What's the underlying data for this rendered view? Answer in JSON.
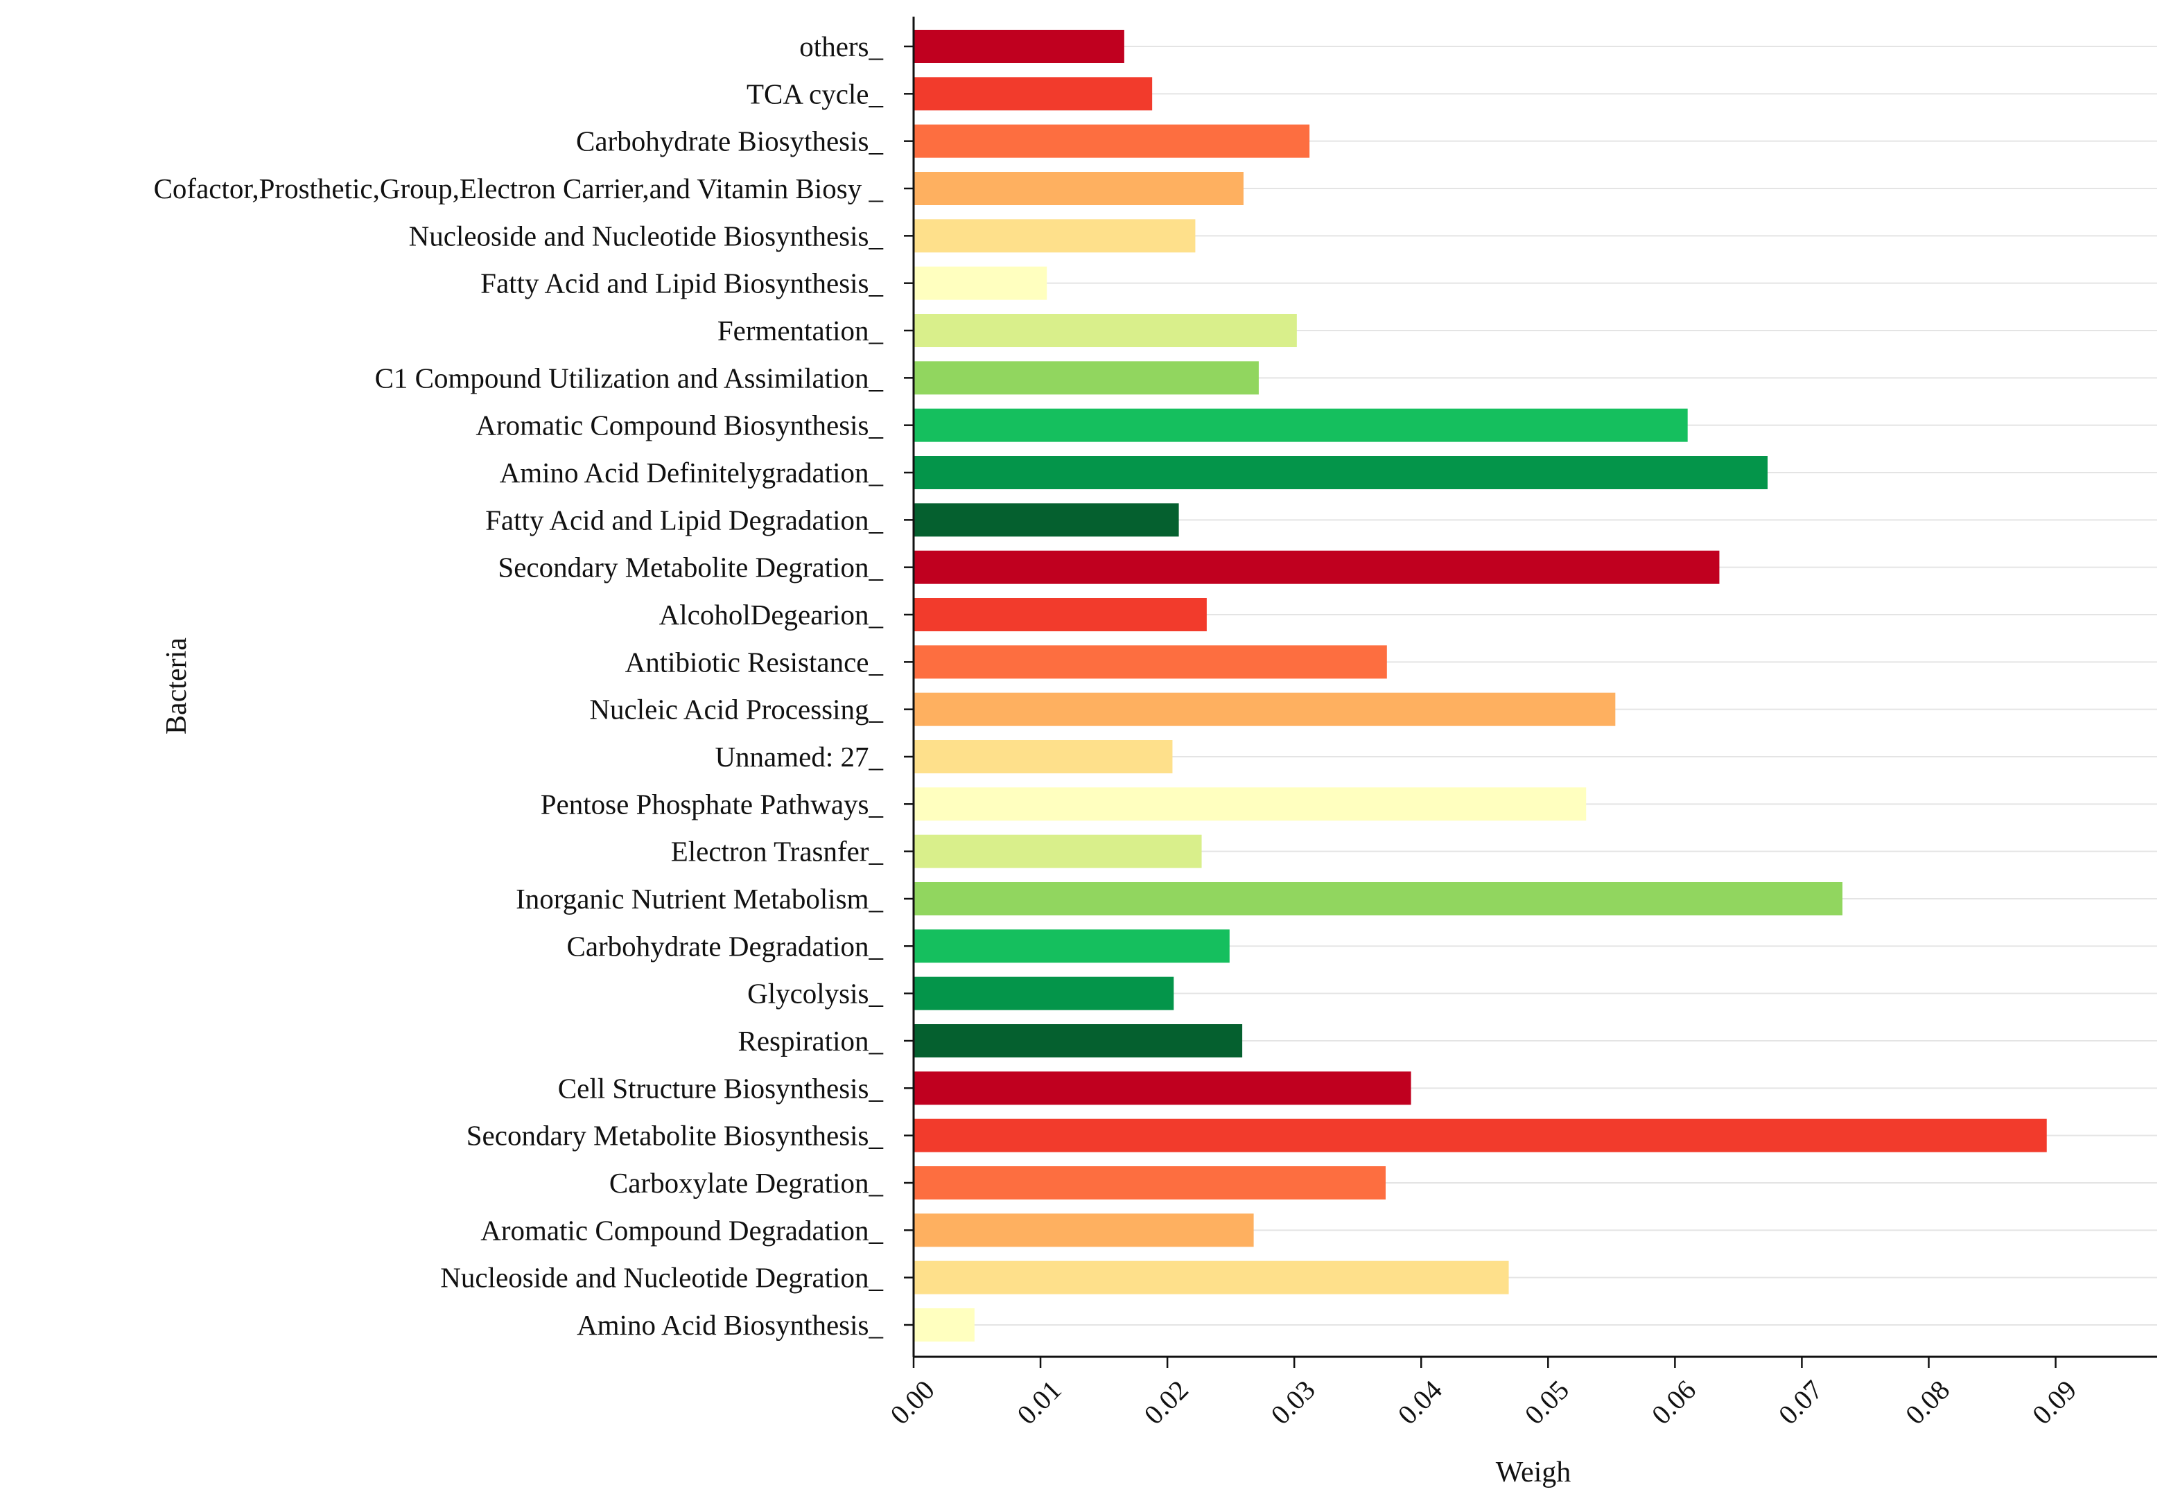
{
  "chart_data": {
    "type": "bar",
    "orientation": "horizontal",
    "title": "",
    "xlabel": "Weigh",
    "ylabel": "Bacteria",
    "xlim": [
      0,
      0.098
    ],
    "xticks": [
      0.0,
      0.01,
      0.02,
      0.03,
      0.04,
      0.05,
      0.06,
      0.07,
      0.08,
      0.09
    ],
    "xtick_labels": [
      "0.00",
      "0.01",
      "0.02",
      "0.03",
      "0.04",
      "0.05",
      "0.06",
      "0.07",
      "0.08",
      "0.09"
    ],
    "grid": "horizontal",
    "categories": [
      "others_",
      "TCA cycle_",
      "Carbohydrate Biosythesis_",
      "Cofactor,Prosthetic,Group,Electron Carrier,and Vitamin Biosy _",
      "Nucleoside and Nucleotide Biosynthesis_",
      "Fatty Acid and Lipid Biosynthesis_",
      "Fermentation_",
      "C1 Compound Utilization and Assimilation_",
      "Aromatic Compound Biosynthesis_",
      "Amino Acid Definitelygradation_",
      "Fatty Acid and Lipid Degradation_",
      "Secondary Metabolite Degration_",
      "AlcoholDegearion_",
      "Antibiotic Resistance_",
      "Nucleic Acid Processing_",
      "Unnamed: 27_",
      "Pentose Phosphate Pathways_",
      "Electron Trasnfer_",
      "Inorganic Nutrient Metabolism_",
      "Carbohydrate Degradation_",
      "Glycolysis_",
      "Respiration_",
      "Cell Structure Biosynthesis_",
      "Secondary Metabolite Biosynthesis_",
      "Carboxylate Degration_",
      "Aromatic Compound Degradation_",
      "Nucleoside and Nucleotide Degration_",
      "Amino Acid Biosynthesis_"
    ],
    "values": [
      0.0166,
      0.0188,
      0.0312,
      0.026,
      0.0222,
      0.0105,
      0.0302,
      0.0272,
      0.061,
      0.0673,
      0.0209,
      0.0635,
      0.0231,
      0.0373,
      0.0553,
      0.0204,
      0.053,
      0.0227,
      0.0732,
      0.0249,
      0.0205,
      0.0259,
      0.0392,
      0.0893,
      0.0372,
      0.0268,
      0.0469,
      0.0048
    ],
    "colors": [
      "#c0001f",
      "#f23b2c",
      "#fd6e40",
      "#feb060",
      "#fee08b",
      "#ffffbf",
      "#d9ef8b",
      "#91d65f",
      "#15bf5e",
      "#04954a",
      "#05602f",
      "#c0001f",
      "#f23b2c",
      "#fd6e40",
      "#feb060",
      "#fee08b",
      "#ffffbf",
      "#d9ef8b",
      "#91d65f",
      "#15bf5e",
      "#04954a",
      "#05602f",
      "#c0001f",
      "#f23b2c",
      "#fd6e40",
      "#feb060",
      "#fee08b",
      "#ffffbf"
    ]
  }
}
